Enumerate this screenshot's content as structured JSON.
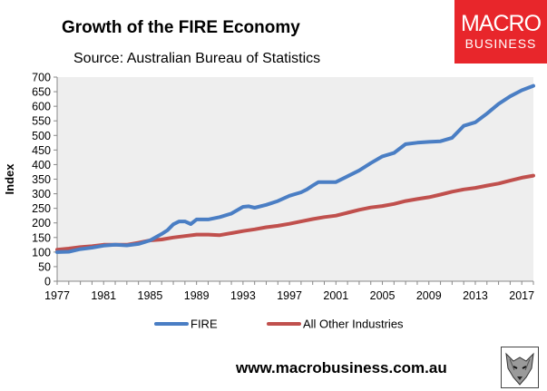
{
  "header": {
    "title": "Growth of the FIRE Economy",
    "subtitle": "Source: Australian Bureau of Statistics"
  },
  "logo": {
    "line1": "MACRO",
    "line2": "BUSINESS"
  },
  "footer": {
    "url": "www.macrobusiness.com.au"
  },
  "colors": {
    "fire": "#4a7ec4",
    "other": "#c0504d",
    "plot_bg": "#eeeeee",
    "logo": "#e8262b"
  },
  "chart_data": {
    "type": "line",
    "title": "Growth of the FIRE Economy",
    "subtitle": "Source: Australian Bureau of Statistics",
    "xlabel": "",
    "ylabel": "Index",
    "ylim": [
      0,
      700
    ],
    "xlim": [
      1977,
      2018
    ],
    "xticks": [
      "1977",
      "1981",
      "1985",
      "1989",
      "1993",
      "1997",
      "2001",
      "2005",
      "2009",
      "2013",
      "2017"
    ],
    "yticks": [
      0,
      50,
      100,
      150,
      200,
      250,
      300,
      350,
      400,
      450,
      500,
      550,
      600,
      650,
      700
    ],
    "grid": false,
    "legend": "bottom",
    "series": [
      {
        "name": "FIRE",
        "color": "#4a7ec4",
        "x": [
          1977,
          1978,
          1979,
          1980,
          1981,
          1982,
          1983,
          1984,
          1985,
          1986,
          1986.5,
          1987,
          1987.5,
          1988,
          1988.5,
          1989,
          1990,
          1991,
          1992,
          1993,
          1993.5,
          1994,
          1995,
          1996,
          1997,
          1998,
          1998.5,
          1999,
          1999.5,
          2000,
          2001,
          2002,
          2003,
          2004,
          2005,
          2006,
          2007,
          2008,
          2009,
          2010,
          2011,
          2012,
          2013,
          2014,
          2015,
          2016,
          2017,
          2018
        ],
        "values": [
          100,
          101,
          110,
          115,
          122,
          125,
          123,
          128,
          140,
          162,
          175,
          195,
          205,
          205,
          196,
          212,
          212,
          220,
          232,
          255,
          257,
          252,
          262,
          275,
          293,
          305,
          315,
          328,
          340,
          340,
          340,
          360,
          380,
          405,
          428,
          440,
          470,
          475,
          478,
          480,
          492,
          533,
          545,
          575,
          608,
          634,
          655,
          670
        ]
      },
      {
        "name": "All Other Industries",
        "color": "#c0504d",
        "x": [
          1977,
          1978,
          1979,
          1980,
          1981,
          1982,
          1983,
          1984,
          1985,
          1986,
          1987,
          1988,
          1989,
          1990,
          1991,
          1992,
          1993,
          1994,
          1995,
          1996,
          1997,
          1998,
          1999,
          2000,
          2001,
          2002,
          2003,
          2004,
          2005,
          2006,
          2007,
          2008,
          2009,
          2010,
          2011,
          2012,
          2013,
          2014,
          2015,
          2016,
          2017,
          2018
        ],
        "values": [
          108,
          112,
          117,
          120,
          125,
          125,
          125,
          132,
          140,
          143,
          150,
          155,
          160,
          160,
          158,
          165,
          172,
          178,
          185,
          190,
          197,
          205,
          213,
          220,
          225,
          235,
          245,
          253,
          258,
          265,
          275,
          282,
          288,
          297,
          307,
          315,
          320,
          328,
          335,
          345,
          355,
          362
        ]
      }
    ]
  }
}
